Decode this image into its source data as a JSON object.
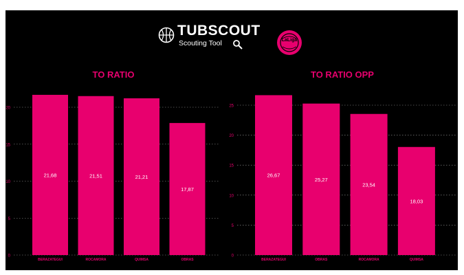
{
  "brand": {
    "name": "TUBSCOUT",
    "subtitle": "Scouting Tool",
    "league_logo_text": "LaLiga",
    "icons": [
      "basketball-icon",
      "magnifier-icon",
      "league-logo"
    ]
  },
  "colors": {
    "background": "#000000",
    "bar": "#e8006e",
    "title": "#e8006e",
    "text": "#ffffff",
    "tick": "#e8006e"
  },
  "chart_data": [
    {
      "type": "bar",
      "title": "TO RATIO",
      "categories": [
        "BERAZATEGUI",
        "ROCAMORA",
        "QUIMSA",
        "OBRAS"
      ],
      "values": [
        21.68,
        21.51,
        21.21,
        17.87
      ],
      "value_labels": [
        "21,68",
        "21,51",
        "21,21",
        "17,87"
      ],
      "ylim": [
        0,
        23
      ],
      "yticks": [
        0,
        5,
        10,
        15,
        20
      ],
      "grid": true,
      "xlabel": "",
      "ylabel": ""
    },
    {
      "type": "bar",
      "title": "TO RATIO OPP",
      "categories": [
        "BERAZATEGUI",
        "OBRAS",
        "ROCAMORA",
        "QUIMSA"
      ],
      "values": [
        26.67,
        25.27,
        23.54,
        18.03
      ],
      "value_labels": [
        "26,67",
        "25,27",
        "23,54",
        "18,03"
      ],
      "ylim": [
        0,
        27.5
      ],
      "yticks": [
        0,
        5,
        10,
        15,
        20,
        25
      ],
      "grid": true,
      "xlabel": "",
      "ylabel": ""
    }
  ]
}
